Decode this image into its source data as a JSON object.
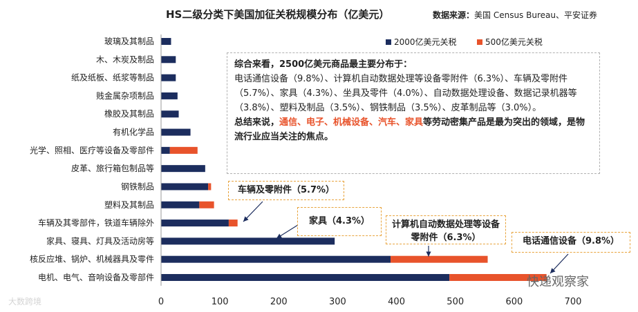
{
  "chart_data": {
    "type": "bar",
    "orientation": "horizontal",
    "stacked": true,
    "title": "HS二级分类下美国加征关税规模分布（亿美元）",
    "source_label": "数据来源：",
    "source_text": "美国 Census Bureau、平安证券",
    "categories": [
      "玻璃及其制品",
      "木、木炭及制品",
      "纸及纸板、纸浆等制品",
      "贱金属杂项制品",
      "橡胶及其制品",
      "有机化学品",
      "光学、照相、医疗等设备及零部件",
      "皮革、旅行箱包制品等",
      "钢铁制品",
      "塑料及其制品",
      "车辆及其零部件，铁道车辆除外",
      "家具、寝具、灯具及活动房等",
      "核反应堆、锅炉、机械器具及零件",
      "电机、电气、音响设备及零部件"
    ],
    "series": [
      {
        "name": "2000亿美元关税",
        "values": [
          17,
          25,
          25,
          28,
          30,
          50,
          15,
          75,
          80,
          65,
          115,
          295,
          390,
          490
        ]
      },
      {
        "name": "500亿美元关税",
        "values": [
          0,
          0,
          0,
          0,
          0,
          0,
          47,
          0,
          5,
          25,
          15,
          0,
          165,
          165
        ]
      }
    ],
    "xlim": [
      0,
      700
    ],
    "xticks": [
      0,
      100,
      200,
      300,
      400,
      500,
      600,
      700
    ],
    "grid": false,
    "legend_position": "top-right",
    "colors": {
      "series0": "#1c2d5e",
      "series1": "#e8532b",
      "callout_border": "#e8a33b",
      "arrow": "#1c2d5e"
    },
    "annotations": {
      "summary_head": "综合来看，2500亿美元商品最主要分布于：",
      "summary_body": "电话通信设备（9.8%）、计算机自动数据处理等设备零附件（6.3%）、车辆及零附件（5.7%）、家具（4.3%）、坐具及零件（4.0%）、自动数据处理设备、数据记录机器等（3.8%）、塑料及制品（3.5%）、钢铁制品（3.5%）、皮革制品等（3.0%）。",
      "concl_pre": "总结来说，",
      "concl_hl": "通信、电子、机械设备、汽车、家具",
      "concl_post": "等劳动密集产品是最为突出的领域，是物流行业应当关注的焦点。",
      "callout_vehicle": "车辆及零附件（5.7%）",
      "callout_furniture": "家具（4.3%）",
      "callout_computer": "计算机自动数据处理等设备零附件（6.3%）",
      "callout_phone": "电话通信设备（9.8%）"
    },
    "watermark": "快递观察家",
    "watermark2": "大数跨境"
  }
}
